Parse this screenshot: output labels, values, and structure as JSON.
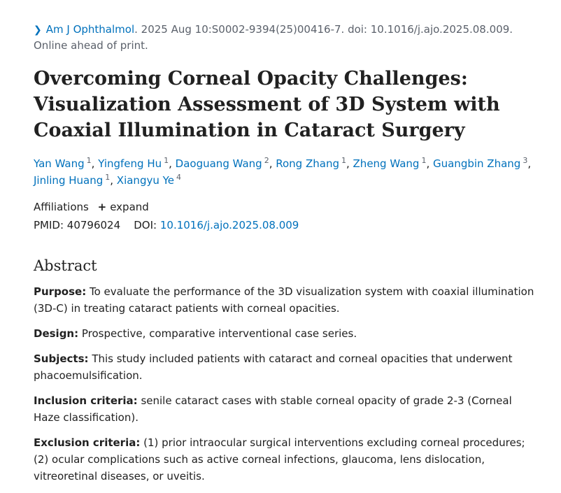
{
  "citation": {
    "journal": "Am J Ophthalmol",
    "details": ". 2025 Aug 10:S0002-9394(25)00416-7. doi: 10.1016/j.ajo.2025.08.009.",
    "status": "Online ahead of print."
  },
  "title": "Overcoming Corneal Opacity Challenges: Visualization Assessment of 3D System with Coaxial Illumination in Cataract Surgery",
  "authors": [
    {
      "name": "Yan Wang",
      "aff": "1"
    },
    {
      "name": "Yingfeng Hu",
      "aff": "1"
    },
    {
      "name": "Daoguang Wang",
      "aff": "2"
    },
    {
      "name": "Rong Zhang",
      "aff": "1"
    },
    {
      "name": "Zheng Wang",
      "aff": "1"
    },
    {
      "name": "Guangbin Zhang",
      "aff": "3"
    },
    {
      "name": "Jinling Huang",
      "aff": "1"
    },
    {
      "name": "Xiangyu Ye",
      "aff": "4"
    }
  ],
  "affiliations": {
    "label": "Affiliations",
    "expand": "expand"
  },
  "ids": {
    "pmid_label": "PMID:",
    "pmid": "40796024",
    "doi_label": "DOI:",
    "doi": "10.1016/j.ajo.2025.08.009"
  },
  "abstract": {
    "heading": "Abstract",
    "sections": [
      {
        "label": "Purpose:",
        "text": "To evaluate the performance of the 3D visualization system with coaxial illumination (3D-C) in treating cataract patients with corneal opacities."
      },
      {
        "label": "Design:",
        "text": "Prospective, comparative interventional case series."
      },
      {
        "label": "Subjects:",
        "text": "This study included patients with cataract and corneal opacities that underwent phacoemulsification."
      },
      {
        "label": "Inclusion criteria:",
        "text": "senile cataract cases with stable corneal opacity of grade 2-3 (Corneal Haze classification)."
      },
      {
        "label": "Exclusion criteria:",
        "text": "(1) prior intraocular surgical interventions excluding corneal procedures; (2) ocular complications such as active corneal infections, glaucoma, lens dislocation, vitreoretinal diseases, or uveitis."
      }
    ]
  }
}
